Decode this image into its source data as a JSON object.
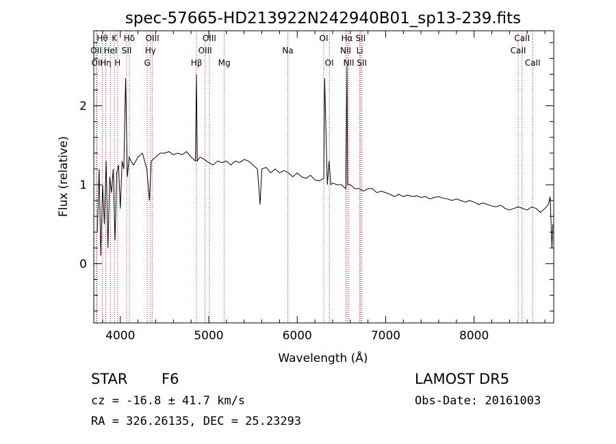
{
  "chart_data": {
    "type": "line",
    "title": "spec-57665-HD213922N242940B01_sp13-239.fits",
    "xlabel": "Wavelength (Å)",
    "ylabel": "Flux (relative)",
    "xlim": [
      3700,
      8900
    ],
    "ylim": [
      -0.75,
      2.95
    ],
    "x_ticks": [
      4000,
      5000,
      6000,
      7000,
      8000
    ],
    "y_ticks": [
      0,
      1,
      2
    ],
    "grid": false,
    "line_color": "#000000",
    "marker_color": "#b22222",
    "series": [
      {
        "x": [
          3740,
          3760,
          3780,
          3800,
          3820,
          3840,
          3860,
          3880,
          3900,
          3920,
          3940,
          3960,
          3980,
          4000,
          4020,
          4040,
          4060,
          4080,
          4100,
          4120,
          4150,
          4200,
          4250,
          4300,
          4330,
          4350,
          4400,
          4450,
          4500,
          4550,
          4600,
          4650,
          4700,
          4750,
          4800,
          4850,
          4861,
          4870,
          4900,
          4950,
          5000,
          5050,
          5100,
          5150,
          5200,
          5250,
          5300,
          5350,
          5400,
          5450,
          5500,
          5550,
          5580,
          5600,
          5650,
          5700,
          5750,
          5800,
          5850,
          5900,
          5950,
          6000,
          6050,
          6100,
          6150,
          6200,
          6250,
          6300,
          6310,
          6340,
          6360,
          6380,
          6400,
          6450,
          6500,
          6550,
          6563,
          6570,
          6600,
          6650,
          6700,
          6750,
          6800,
          6850,
          6900,
          6950,
          7000,
          7050,
          7100,
          7150,
          7200,
          7250,
          7300,
          7350,
          7400,
          7450,
          7500,
          7550,
          7600,
          7650,
          7700,
          7750,
          7800,
          7850,
          7900,
          7950,
          8000,
          8050,
          8100,
          8150,
          8200,
          8250,
          8300,
          8350,
          8400,
          8450,
          8500,
          8550,
          8600,
          8650,
          8700,
          8750,
          8800,
          8840,
          8860,
          8880,
          8890
        ],
        "y": [
          0.4,
          1.2,
          0.1,
          1.0,
          0.5,
          1.3,
          0.2,
          1.1,
          0.9,
          1.2,
          0.3,
          1.15,
          1.25,
          0.7,
          1.3,
          1.2,
          2.35,
          1.1,
          1.35,
          1.3,
          1.25,
          1.35,
          1.4,
          1.2,
          0.8,
          1.3,
          1.35,
          1.4,
          1.4,
          1.42,
          1.38,
          1.4,
          1.38,
          1.42,
          1.35,
          1.3,
          2.4,
          1.3,
          1.35,
          1.32,
          1.28,
          1.25,
          1.3,
          1.28,
          1.3,
          1.25,
          1.3,
          1.28,
          1.32,
          1.3,
          1.25,
          1.2,
          0.75,
          1.2,
          1.22,
          1.15,
          1.2,
          1.15,
          1.18,
          1.15,
          1.1,
          1.15,
          1.1,
          1.08,
          1.12,
          1.06,
          1.05,
          1.08,
          2.35,
          1.0,
          1.3,
          1.0,
          1.02,
          1.0,
          1.0,
          0.95,
          2.5,
          1.0,
          1.0,
          0.95,
          0.95,
          0.92,
          0.95,
          0.95,
          0.9,
          0.92,
          0.9,
          0.88,
          0.85,
          0.88,
          0.85,
          0.87,
          0.85,
          0.86,
          0.84,
          0.85,
          0.82,
          0.84,
          0.85,
          0.83,
          0.82,
          0.8,
          0.82,
          0.8,
          0.78,
          0.8,
          0.78,
          0.75,
          0.77,
          0.75,
          0.73,
          0.72,
          0.74,
          0.7,
          0.68,
          0.7,
          0.72,
          0.7,
          0.68,
          0.72,
          0.7,
          0.65,
          0.7,
          0.75,
          0.85,
          0.2,
          0.5
        ]
      }
    ],
    "line_markers": [
      {
        "label": "OII",
        "wl": 3727,
        "row": 1
      },
      {
        "label": "OII",
        "wl": 3737,
        "row": 2
      },
      {
        "label": "Hθ",
        "wl": 3797,
        "row": 0
      },
      {
        "label": "Hη",
        "wl": 3835,
        "row": 2
      },
      {
        "label": "HeI",
        "wl": 3889,
        "row": 1
      },
      {
        "label": "K",
        "wl": 3934,
        "row": 0
      },
      {
        "label": "H",
        "wl": 3969,
        "row": 2
      },
      {
        "label": "SII",
        "wl": 4072,
        "row": 1
      },
      {
        "label": "Hδ",
        "wl": 4102,
        "row": 0
      },
      {
        "label": "G",
        "wl": 4305,
        "row": 2
      },
      {
        "label": "Hγ",
        "wl": 4341,
        "row": 1
      },
      {
        "label": "OIII",
        "wl": 4363,
        "row": 0
      },
      {
        "label": "Hβ",
        "wl": 4861,
        "row": 2
      },
      {
        "label": "OIII",
        "wl": 4959,
        "row": 1
      },
      {
        "label": "OIII",
        "wl": 5007,
        "row": 0
      },
      {
        "label": "Mg",
        "wl": 5175,
        "row": 2
      },
      {
        "label": "Na",
        "wl": 5894,
        "row": 1
      },
      {
        "label": "OI",
        "wl": 6300,
        "row": 0
      },
      {
        "label": "OI",
        "wl": 6363,
        "row": 2
      },
      {
        "label": "NII",
        "wl": 6548,
        "row": 1
      },
      {
        "label": "Hα",
        "wl": 6563,
        "row": 0
      },
      {
        "label": "NII",
        "wl": 6583,
        "row": 2
      },
      {
        "label": "Li",
        "wl": 6707,
        "row": 1
      },
      {
        "label": "SII",
        "wl": 6717,
        "row": 0
      },
      {
        "label": "SII",
        "wl": 6731,
        "row": 2
      },
      {
        "label": "CaII",
        "wl": 8498,
        "row": 1
      },
      {
        "label": "CaII",
        "wl": 8542,
        "row": 0
      },
      {
        "label": "CaII",
        "wl": 8662,
        "row": 2
      }
    ]
  },
  "info": {
    "object_class": "STAR",
    "subclass": "F6",
    "survey": "LAMOST DR5",
    "redshift": "cz = -16.8 ± 41.7 km/s",
    "obs_date": "Obs-Date: 20161003",
    "coords": "RA = 326.26135, DEC =  25.23293"
  }
}
